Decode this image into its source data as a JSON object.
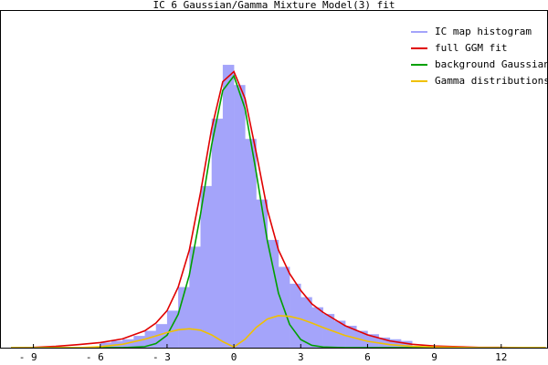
{
  "chart_data": {
    "type": "histogram",
    "title": "IC_6 Gaussian/Gamma Mixture Model(3) fit",
    "xlim": [
      -10.5,
      14.1
    ],
    "ylim": [
      0,
      100
    ],
    "xticks": [
      {
        "value": -9,
        "label": "- 9"
      },
      {
        "value": -6,
        "label": "- 6"
      },
      {
        "value": -3,
        "label": "- 3"
      },
      0,
      3,
      6,
      9,
      12
    ],
    "legend": "upper right",
    "histogram": {
      "name": "IC map histogram",
      "color": "#a4a4fa",
      "bins": [
        -6,
        -5.5,
        -5,
        -4.5,
        -4,
        -3.5,
        -3,
        -2.5,
        -2,
        -1.5,
        -1,
        -0.5,
        0,
        0.5,
        1,
        1.5,
        2,
        2.5,
        3,
        3.5,
        4,
        4.5,
        5,
        5.5,
        6,
        6.5,
        7,
        7.5,
        8
      ],
      "counts": [
        1.5,
        2,
        2.5,
        3.5,
        5,
        7,
        11,
        18,
        30,
        48,
        68,
        84,
        78,
        62,
        44,
        32,
        24,
        19,
        15,
        12,
        10,
        8,
        6.5,
        5,
        4,
        3,
        2.5,
        2
      ]
    },
    "x": [
      -10,
      -9,
      -8,
      -7,
      -6,
      -5,
      -4,
      -3.5,
      -3,
      -2.5,
      -2,
      -1.5,
      -1,
      -0.5,
      0,
      0.5,
      1,
      1.5,
      2,
      2.5,
      3,
      3.5,
      4,
      5,
      6,
      7,
      8,
      9,
      10,
      11,
      12,
      13,
      14
    ],
    "series": [
      {
        "name": "full GGM fit",
        "color": "#e00000",
        "values": [
          0,
          0.1,
          0.4,
          0.9,
          1.5,
          2.6,
          5,
          7.3,
          11,
          18,
          29,
          46,
          65,
          79,
          82,
          74,
          58,
          41,
          29,
          22,
          17,
          13,
          10.5,
          6.5,
          3.8,
          2,
          1,
          0.5,
          0.3,
          0.1,
          0.1,
          0,
          0
        ]
      },
      {
        "name": "background Gaussian",
        "color": "#00a000",
        "values": [
          0,
          0,
          0,
          0,
          0,
          0,
          0.3,
          1.2,
          3.7,
          9.9,
          21.6,
          39.6,
          60.2,
          76.4,
          80.7,
          71,
          52.1,
          31.8,
          16.2,
          6.9,
          2.4,
          0.7,
          0.2,
          0,
          0,
          0,
          0,
          0,
          0,
          0,
          0,
          0,
          0
        ]
      },
      {
        "name": "Gamma distributions",
        "color": "#f0c000",
        "values": [
          0,
          0,
          0,
          0,
          0.3,
          1,
          2.5,
          3.5,
          4.5,
          5.3,
          5.6,
          5.2,
          3.8,
          1.8,
          0.2,
          2.5,
          6,
          8.5,
          9.5,
          9.3,
          8.5,
          7.3,
          6,
          3.6,
          1.9,
          0.9,
          0.4,
          0.2,
          0.1,
          0,
          0,
          0,
          0
        ]
      }
    ]
  }
}
